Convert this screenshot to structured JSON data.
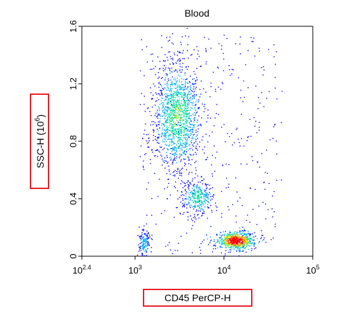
{
  "chart_data": {
    "type": "scatter",
    "title": "Blood",
    "xlabel": "CD45 PerCP-H",
    "ylabel": "SSC-H (10^6)",
    "ylabel_base": "SSC-H (10",
    "ylabel_exp": "6",
    "ylabel_close": ")",
    "x_scale": "log",
    "x_range": [
      251.19,
      100000
    ],
    "y_range": [
      0,
      1.6
    ],
    "x_ticks": [
      {
        "value": 251.19,
        "base": "10",
        "exp": "2.4"
      },
      {
        "value": 1000,
        "base": "10",
        "exp": "3"
      },
      {
        "value": 10000,
        "base": "10",
        "exp": "4"
      },
      {
        "value": 100000,
        "base": "10",
        "exp": "5"
      }
    ],
    "y_ticks": [
      {
        "value": 0,
        "label": "0"
      },
      {
        "value": 0.4,
        "label": "0.4"
      },
      {
        "value": 0.8,
        "label": "0.8"
      },
      {
        "value": 1.2,
        "label": "1.2"
      },
      {
        "value": 1.6,
        "label": "1.6"
      }
    ],
    "grid": false,
    "density_colormap": [
      "#0000ff",
      "#00a8ff",
      "#00e0a0",
      "#c8e000",
      "#ff8000",
      "#ff0000"
    ],
    "populations": [
      {
        "center_log_x": 3.47,
        "center_y": 0.98,
        "spread_log_x": 0.13,
        "spread_y": 0.19,
        "count": 1400,
        "relative_density": 0.45
      },
      {
        "center_log_x": 3.7,
        "center_y": 0.41,
        "spread_log_x": 0.09,
        "spread_y": 0.06,
        "count": 330,
        "relative_density": 0.38
      },
      {
        "center_log_x": 4.13,
        "center_y": 0.11,
        "spread_log_x": 0.1,
        "spread_y": 0.03,
        "count": 700,
        "relative_density": 1.0
      },
      {
        "center_log_x": 3.1,
        "center_y": 0.09,
        "spread_log_x": 0.03,
        "spread_y": 0.05,
        "count": 150,
        "relative_density": 0.3
      }
    ],
    "scattered_events": 380,
    "label_highlight_color": "#e8202a"
  }
}
